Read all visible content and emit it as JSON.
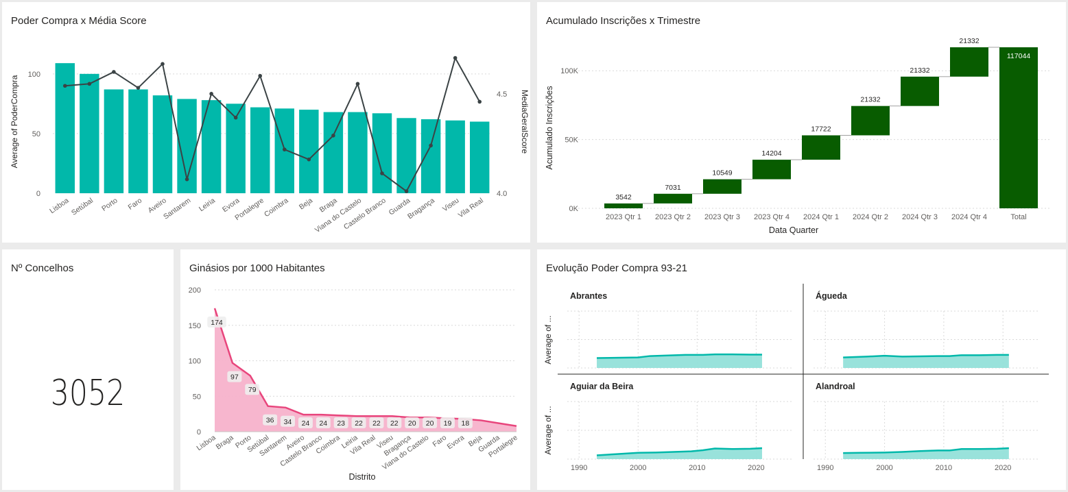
{
  "colors": {
    "teal": "#01b8aa",
    "teal_area": "#94e0d9",
    "dark_line": "#3b4345",
    "green": "#085c00",
    "pink_line": "#e8457c",
    "pink_area": "#f7b2cb",
    "grid": "#d9d9d9",
    "axis_text": "#605e5c"
  },
  "panels": {
    "p1": {
      "title": "Poder Compra x Média Score"
    },
    "p2": {
      "title": "Acumulado Inscrições x Trimestre"
    },
    "p3": {
      "title": "Nº Concelhos",
      "value": "3052"
    },
    "p4": {
      "title": "Ginásios por 1000 Habitantes"
    },
    "p5": {
      "title": "Evolução Poder Compra 93-21"
    }
  },
  "chart_data": [
    {
      "id": "poder_compra_score",
      "type": "bar",
      "title": "Poder Compra x Média Score",
      "categories": [
        "Lisboa",
        "Setúbal",
        "Porto",
        "Faro",
        "Aveiro",
        "Santarem",
        "Leiria",
        "Evora",
        "Portalegre",
        "Coimbra",
        "Beja",
        "Braga",
        "Viana do Castelo",
        "Castelo Branco",
        "Guarda",
        "Bragança",
        "Viseu",
        "Vila Real"
      ],
      "series": [
        {
          "name": "Average of PoderCompra",
          "type": "bar",
          "axis": "left",
          "values": [
            109,
            100,
            87,
            87,
            82,
            79,
            78,
            75,
            72,
            71,
            70,
            68,
            68,
            67,
            63,
            62,
            61,
            60
          ]
        },
        {
          "name": "MediaGeralScore",
          "type": "line",
          "axis": "right",
          "values": [
            4.54,
            4.55,
            4.61,
            4.53,
            4.65,
            4.07,
            4.5,
            4.38,
            4.59,
            4.22,
            4.17,
            4.29,
            4.55,
            4.1,
            4.01,
            4.24,
            4.68,
            4.46
          ]
        }
      ],
      "ylabel": "Average of PoderCompra",
      "y2label": "MediaGeralScore",
      "ylim": [
        0,
        120
      ],
      "yticks": [
        "0",
        "50",
        "100"
      ],
      "y2lim": [
        4.0,
        4.72
      ],
      "y2ticks": [
        "4.0",
        "4.5"
      ]
    },
    {
      "id": "acumulado_inscricoes",
      "type": "waterfall",
      "title": "Acumulado Inscrições x Trimestre",
      "categories": [
        "2023 Qtr 1",
        "2023 Qtr 2",
        "2023 Qtr 3",
        "2023 Qtr 4",
        "2024 Qtr 1",
        "2024 Qtr 2",
        "2024 Qtr 3",
        "2024 Qtr 4",
        "Total"
      ],
      "values": [
        3542,
        7031,
        10549,
        14204,
        17722,
        21332,
        21332,
        21332,
        117044
      ],
      "labels": [
        "3542",
        "7031",
        "10549",
        "14204",
        "17722",
        "21332",
        "21332",
        "21332",
        "117044"
      ],
      "xlabel": "Data Quarter",
      "ylabel": "Acumulado Inscrições",
      "ylim": [
        0,
        117044
      ],
      "yticks": [
        "0K",
        "50K",
        "100K"
      ]
    },
    {
      "id": "ginasios",
      "type": "area",
      "title": "Ginásios por 1000 Habitantes",
      "categories": [
        "Lisboa",
        "Braga",
        "Porto",
        "Setúbal",
        "Santarem",
        "Aveiro",
        "Castelo Branco",
        "Coimbra",
        "Leiria",
        "Vila Real",
        "Viseu",
        "Bragança",
        "Viana do Castelo",
        "Faro",
        "Evora",
        "Beja",
        "Guarda",
        "Portalegre"
      ],
      "values": [
        174,
        97,
        79,
        36,
        34,
        24,
        24,
        23,
        22,
        22,
        22,
        20,
        20,
        19,
        18,
        16,
        12,
        8
      ],
      "labels": [
        "174",
        "97",
        "79",
        "36",
        "34",
        "24",
        "24",
        "23",
        "22",
        "22",
        "22",
        "20",
        "20",
        "19",
        "18",
        "",
        "",
        ""
      ],
      "xlabel": "Distrito",
      "ylim": [
        0,
        200
      ],
      "yticks": [
        "0",
        "50",
        "100",
        "150",
        "200"
      ]
    },
    {
      "id": "evolucao_poder_compra",
      "type": "area",
      "title": "Evolução Poder Compra 93-21",
      "ylabel": "Average of ...",
      "xlim": [
        1988,
        2026
      ],
      "xticks": [
        "1990",
        "2000",
        "2010",
        "2020"
      ],
      "ylim": [
        0,
        200
      ],
      "facets": [
        {
          "name": "Abrantes",
          "x": [
            1993,
            2000,
            2002,
            2005,
            2008,
            2011,
            2013,
            2016,
            2019,
            2021
          ],
          "values": [
            35,
            37,
            42,
            44,
            46,
            46,
            48,
            48,
            47,
            47
          ]
        },
        {
          "name": "Águeda",
          "x": [
            1993,
            1997,
            2000,
            2003,
            2006,
            2009,
            2011,
            2013,
            2016,
            2019,
            2021
          ],
          "values": [
            37,
            40,
            43,
            40,
            41,
            42,
            42,
            45,
            45,
            46,
            46
          ]
        },
        {
          "name": "Aguiar da Beira",
          "x": [
            1993,
            1996,
            2000,
            2003,
            2006,
            2009,
            2011,
            2013,
            2016,
            2019,
            2021
          ],
          "values": [
            13,
            17,
            22,
            23,
            25,
            27,
            31,
            37,
            35,
            36,
            38
          ]
        },
        {
          "name": "Alandroal",
          "x": [
            1993,
            1996,
            2000,
            2003,
            2006,
            2009,
            2011,
            2013,
            2016,
            2019,
            2021
          ],
          "values": [
            21,
            22,
            23,
            25,
            28,
            30,
            30,
            35,
            35,
            36,
            38
          ]
        }
      ]
    }
  ]
}
